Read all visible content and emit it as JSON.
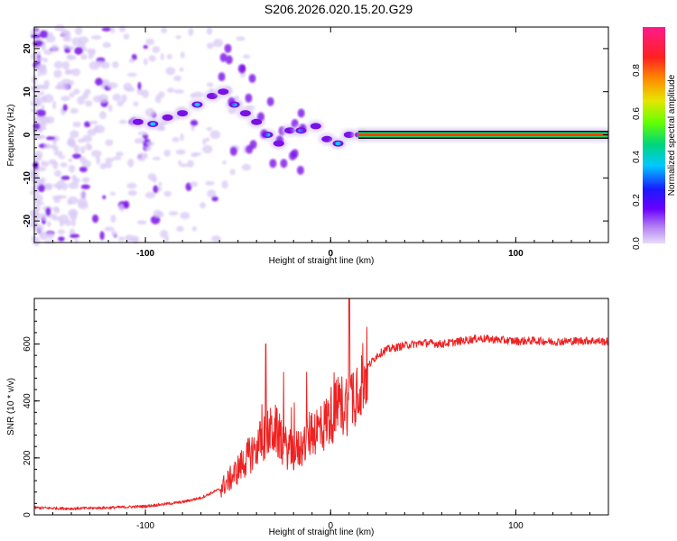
{
  "title": "S206.2026.020.15.20.G29",
  "chart_data": [
    {
      "type": "heatmap",
      "xlabel": "Height of straight line (km)",
      "ylabel": "Frequency (Hz)",
      "xlim": [
        -160,
        150
      ],
      "ylim": [
        -25,
        25
      ],
      "xticks": [
        -100,
        0,
        100
      ],
      "yticks": [
        -20,
        -10,
        0,
        10,
        20
      ],
      "colorbar": {
        "label": "Normalized spectral amplitude",
        "range": [
          0,
          1
        ],
        "ticks": [
          "0.0",
          "0.2",
          "0.4",
          "0.6",
          "0.8"
        ],
        "colormap": [
          "#d9c9f5",
          "#7a10e8",
          "#1a1aff",
          "#00d4ff",
          "#1ad46b",
          "#80ff00",
          "#ffd400",
          "#ff4000",
          "#ff0066",
          "#ff1a8c"
        ]
      },
      "features": [
        {
          "name": "steady carrier",
          "x_start": 15,
          "x_end": 150,
          "frequency": 0,
          "amplitude": 1.0
        },
        {
          "name": "drifting track",
          "points": [
            [
              -104,
              3
            ],
            [
              -96,
              2.5
            ],
            [
              -88,
              4
            ],
            [
              -80,
              5
            ],
            [
              -72,
              7
            ],
            [
              -64,
              9
            ],
            [
              -58,
              10
            ],
            [
              -52,
              7
            ],
            [
              -46,
              5
            ],
            [
              -40,
              3
            ],
            [
              -34,
              0
            ],
            [
              -28,
              -2
            ],
            [
              -22,
              1
            ],
            [
              -16,
              1
            ],
            [
              -8,
              2
            ],
            [
              -2,
              -1
            ],
            [
              4,
              -2
            ],
            [
              10,
              0
            ],
            [
              16,
              0
            ]
          ]
        },
        {
          "name": "noise",
          "x_range": [
            -160,
            -60
          ],
          "frequency_range": [
            -25,
            25
          ]
        }
      ]
    },
    {
      "type": "line",
      "xlabel": "Height of straight line (km)",
      "ylabel": "SNR (10 * v/v)",
      "xlim": [
        -160,
        150
      ],
      "ylim": [
        0,
        760
      ],
      "xticks": [
        -100,
        0,
        100
      ],
      "yticks": [
        0,
        200,
        400,
        600
      ],
      "series": [
        {
          "name": "SNR",
          "color": "#ee2222",
          "x": [
            -160,
            -140,
            -120,
            -100,
            -80,
            -70,
            -60,
            -55,
            -50,
            -45,
            -40,
            -35,
            -30,
            -25,
            -20,
            -15,
            -10,
            -5,
            0,
            5,
            10,
            15,
            20,
            25,
            30,
            40,
            50,
            60,
            70,
            80,
            90,
            100,
            110,
            120,
            130,
            140,
            150
          ],
          "values": [
            25,
            22,
            25,
            30,
            45,
            60,
            90,
            120,
            160,
            200,
            240,
            280,
            300,
            240,
            220,
            240,
            300,
            300,
            350,
            380,
            400,
            460,
            520,
            560,
            580,
            595,
            605,
            600,
            610,
            620,
            615,
            610,
            612,
            608,
            610,
            612,
            608
          ]
        }
      ],
      "annotations": [
        {
          "label": "max spike",
          "x": 10,
          "value": 760
        },
        {
          "label": "spike",
          "x": -35,
          "value": 600
        }
      ]
    }
  ]
}
